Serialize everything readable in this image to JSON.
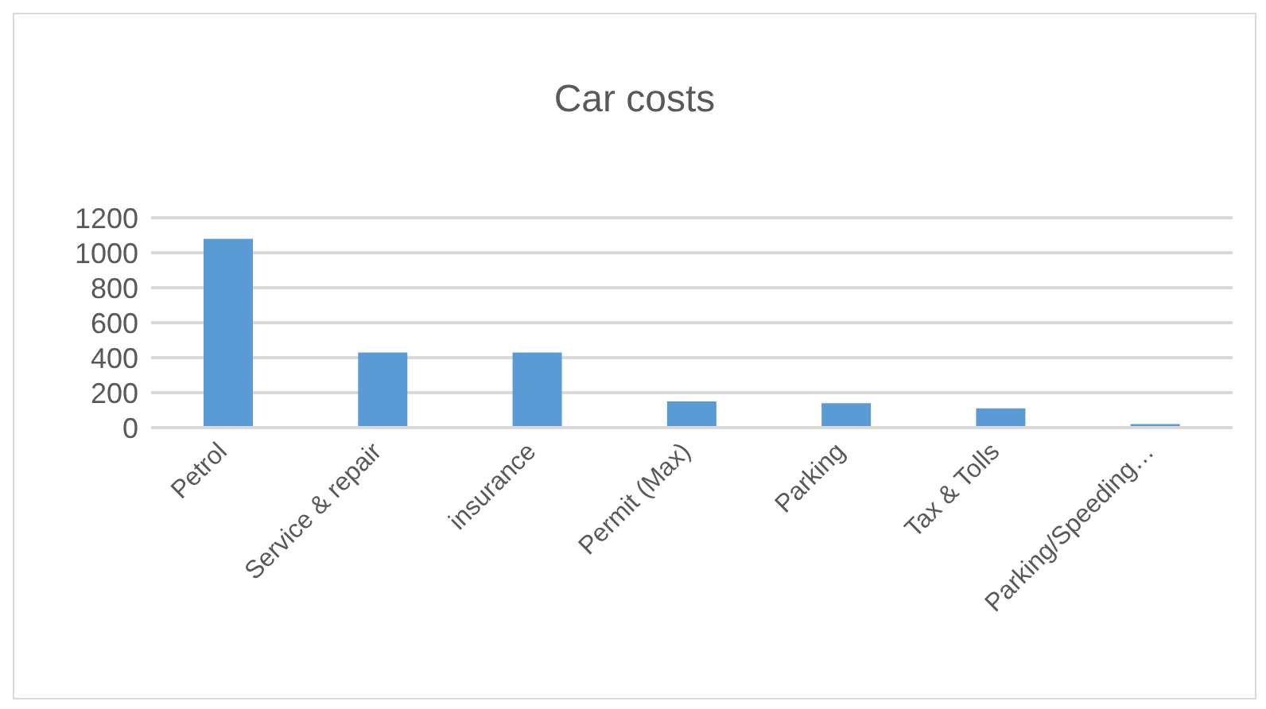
{
  "chart_data": {
    "type": "bar",
    "title": "Car costs",
    "categories": [
      "Petrol",
      "Service & repair",
      "insurance",
      "Permit (Max)",
      "Parking",
      "Tax & Tolls",
      "Parking/Speeding…"
    ],
    "values": [
      1080,
      430,
      430,
      150,
      140,
      110,
      20
    ],
    "color": "#5b9bd5",
    "ylim": [
      0,
      1200
    ],
    "yticks": [
      0,
      200,
      400,
      600,
      800,
      1000,
      1200
    ],
    "grid": "y"
  }
}
